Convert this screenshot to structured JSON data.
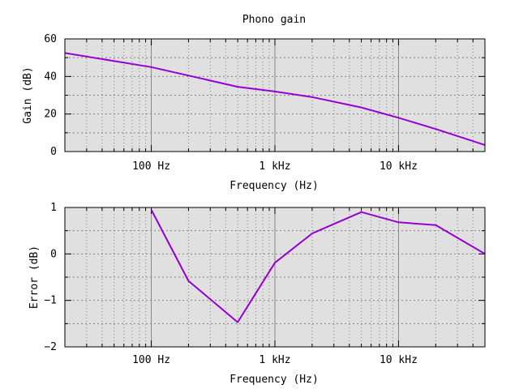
{
  "title": "Phono gain",
  "colors": {
    "series": "#9400d3",
    "plot_background": "#e0e0e0"
  },
  "chart_data": [
    {
      "type": "line",
      "xscale": "log",
      "xlim": [
        20,
        50000
      ],
      "ylim": [
        0,
        60
      ],
      "xticks": [
        100,
        1000,
        10000
      ],
      "xtick_labels": [
        "100 Hz",
        "1 kHz",
        "10 kHz"
      ],
      "yticks": [
        0,
        20,
        40,
        60
      ],
      "ytick_labels": [
        "0",
        "20",
        "40",
        "60"
      ],
      "xlabel": "Frequency (Hz)",
      "ylabel": "Gain (dB)",
      "grid": true,
      "series": [
        {
          "x": [
            20,
            100,
            500,
            1000,
            2000,
            5000,
            10000,
            20000,
            50000
          ],
          "y": [
            52.5,
            45,
            34.5,
            32,
            29,
            23.5,
            18,
            12,
            3.5
          ]
        }
      ]
    },
    {
      "type": "line",
      "xscale": "log",
      "xlim": [
        20,
        50000
      ],
      "ylim": [
        -2,
        1
      ],
      "xticks": [
        100,
        1000,
        10000
      ],
      "xtick_labels": [
        "100 Hz",
        "1 kHz",
        "10 kHz"
      ],
      "yticks": [
        -2,
        -1,
        0,
        1
      ],
      "ytick_labels": [
        "−2",
        "−1",
        "0",
        "1"
      ],
      "xlabel": "Frequency (Hz)",
      "ylabel": "Error (dB)",
      "grid": true,
      "series": [
        {
          "x": [
            100,
            200,
            500,
            1000,
            2000,
            5000,
            10000,
            20000,
            50000
          ],
          "y": [
            0.95,
            -0.58,
            -1.47,
            -0.19,
            0.44,
            0.9,
            0.68,
            0.62,
            0.0
          ]
        }
      ]
    }
  ]
}
